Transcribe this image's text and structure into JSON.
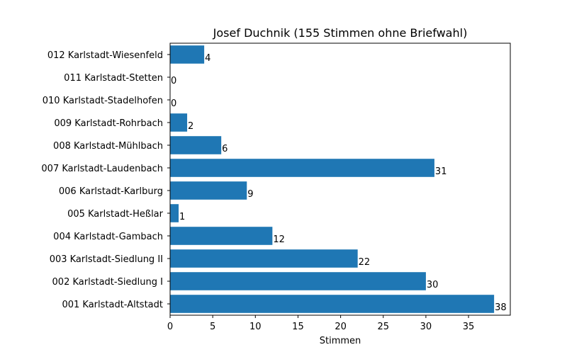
{
  "chart_data": {
    "type": "bar",
    "orientation": "horizontal",
    "title": "Josef Duchnik (155 Stimmen ohne Briefwahl)",
    "xlabel": "Stimmen",
    "ylabel": "",
    "xlim": [
      0,
      39.9
    ],
    "xticks": [
      0,
      5,
      10,
      15,
      20,
      25,
      30,
      35
    ],
    "grid": false,
    "legend": "none",
    "bar_color": "#1f77b4",
    "categories": [
      "001 Karlstadt-Altstadt",
      "002 Karlstadt-Siedlung I",
      "003 Karlstadt-Siedlung II",
      "004 Karlstadt-Gambach",
      "005 Karlstadt-Heßlar",
      "006 Karlstadt-Karlburg",
      "007 Karlstadt-Laudenbach",
      "008 Karlstadt-Mühlbach",
      "009 Karlstadt-Rohrbach",
      "010 Karlstadt-Stadelhofen",
      "011 Karlstadt-Stetten",
      "012 Karlstadt-Wiesenfeld"
    ],
    "values": [
      38,
      30,
      22,
      12,
      1,
      9,
      31,
      6,
      2,
      0,
      0,
      4
    ]
  }
}
